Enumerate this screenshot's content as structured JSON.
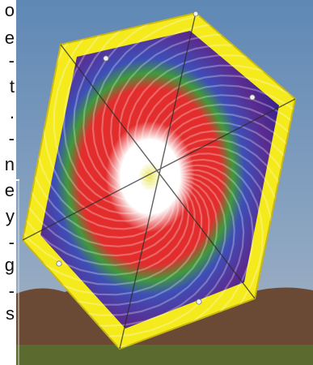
{
  "side_text_fragments": [
    "o",
    "e",
    "-",
    "t",
    ".",
    "-",
    "n",
    "e",
    "y",
    "-",
    "g",
    "-",
    "s"
  ],
  "photo": {
    "subject": "kite",
    "colors": {
      "sky": "#5f88b5",
      "sky_low": "#a9b3bd",
      "trees": "#6b4a35",
      "field": "#5b6a2f",
      "kite_frame": "#f4ea1c",
      "kite_outer": "#2a1f8a",
      "kite_purple": "#5b2b8f",
      "kite_blue": "#3d4fb8",
      "kite_green": "#3f9a3a",
      "kite_red": "#e32d2d",
      "kite_center": "#ffffff",
      "kite_core": "#e8e24a"
    }
  }
}
